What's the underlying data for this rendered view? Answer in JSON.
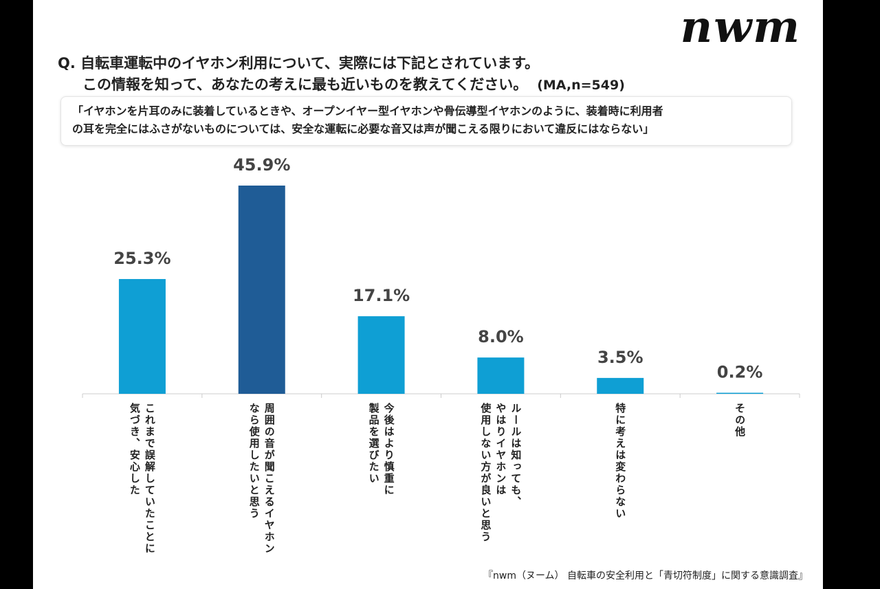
{
  "logo": "nwm",
  "question": {
    "line1": "Q. 自転車運転中のイヤホン利用について、実際には下記とされています。",
    "line2": "この情報を知って、あなたの考えに最も近いものを教えてください。",
    "meta": "(MA,n=549)"
  },
  "quote": {
    "line1": "「イヤホンを片耳のみに装着しているときや、オープンイヤー型イヤホンや骨伝導型イヤホンのように、装着時に利用者",
    "line2": "の耳を完全にはふさがないものについては、安全な運転に必要な音又は声が聞こえる限りにおいて違反にはならない」"
  },
  "footer": "『nwm（ヌーム） 自転車の安全利用と「青切符制度」に関する意識調査』",
  "colors": {
    "bar": "#0f9fd4",
    "highlight": "#1f5c96",
    "label": "#444444",
    "axis": "#cccccc"
  },
  "chart_data": {
    "type": "bar",
    "unit": "%",
    "ylim": [
      0,
      50
    ],
    "highlight_index": 1,
    "categories": [
      [
        "これまで誤解していたことに",
        "気づき、安心した"
      ],
      [
        "周囲の音が聞こえるイヤホン",
        "なら使用したいと思う"
      ],
      [
        "今後はより慎重に",
        "製品を選びたい"
      ],
      [
        "ルールは知っても、",
        "やはりイヤホンは",
        "使用しない方が良いと思う"
      ],
      [
        "特に考えは変わらない"
      ],
      [
        "その他"
      ]
    ],
    "values": [
      25.3,
      45.9,
      17.1,
      8.0,
      3.5,
      0.2
    ],
    "value_labels": [
      "25.3%",
      "45.9%",
      "17.1%",
      "8.0%",
      "3.5%",
      "0.2%"
    ]
  }
}
